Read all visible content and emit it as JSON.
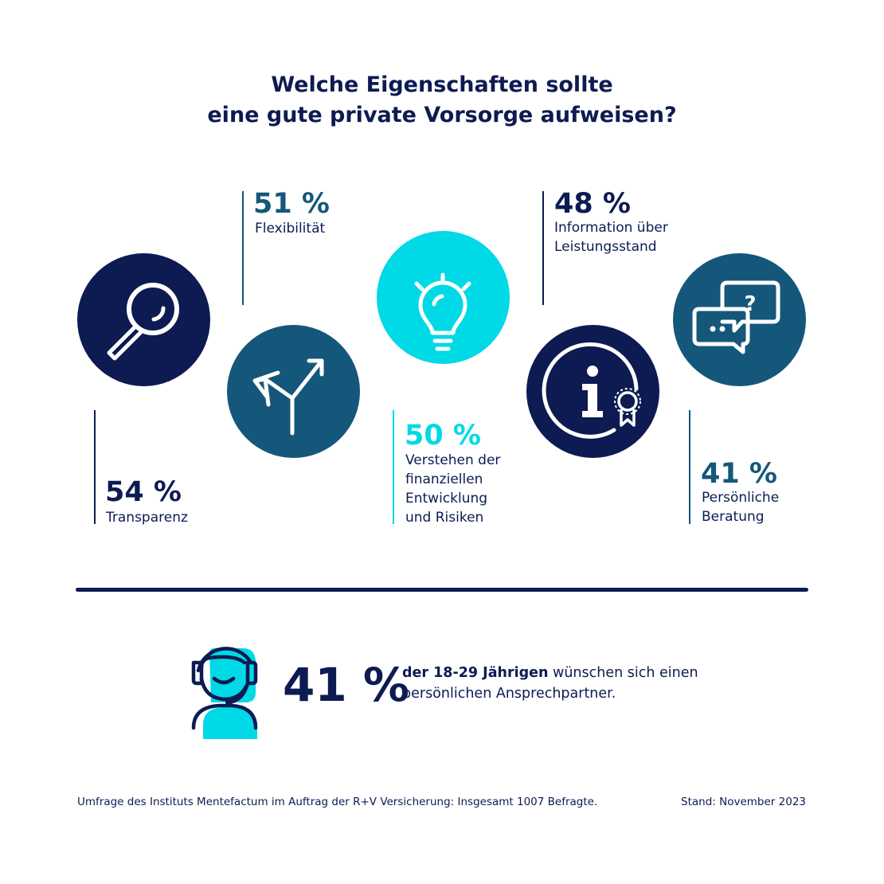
{
  "title": {
    "line1": "Welche Eigenschaften sollte",
    "line2": "eine gute private Vorsorge aufweisen?"
  },
  "chart_data": {
    "type": "infographic",
    "items": [
      {
        "value_label": "54 %",
        "value": 54,
        "label_lines": [
          "Transparenz"
        ],
        "icon": "magnifier-icon",
        "color": "#0d1b52"
      },
      {
        "value_label": "51 %",
        "value": 51,
        "label_lines": [
          "Flexibilität"
        ],
        "icon": "split-arrows-icon",
        "color": "#15577a"
      },
      {
        "value_label": "50 %",
        "value": 50,
        "label_lines": [
          "Verstehen der",
          "finanziellen",
          "Entwicklung",
          "und Risiken"
        ],
        "icon": "lightbulb-icon",
        "color": "#00d9e6"
      },
      {
        "value_label": "48 %",
        "value": 48,
        "label_lines": [
          "Information über",
          "Leistungsstand"
        ],
        "icon": "info-badge-icon",
        "color": "#0d1b52"
      },
      {
        "value_label": "41 %",
        "value": 41,
        "label_lines": [
          "Persönliche",
          "Beratung"
        ],
        "icon": "chat-bubbles-icon",
        "color": "#15577a"
      }
    ]
  },
  "highlight": {
    "value_label": "41 %",
    "value": 41,
    "bold_text": "der 18-29 Jährigen",
    "rest_line1": " wünschen sich einen",
    "line2": "persönlichen Ansprechpartner.",
    "icon": "headset-person-icon"
  },
  "footer": {
    "source": "Umfrage des Instituts Mentefactum im Auftrag der R+V Versicherung: Insgesamt 1007 Befragte.",
    "date": "Stand: November 2023"
  },
  "colors": {
    "navy": "#0d1b52",
    "petrol": "#15577a",
    "cyan": "#00d9e6"
  }
}
